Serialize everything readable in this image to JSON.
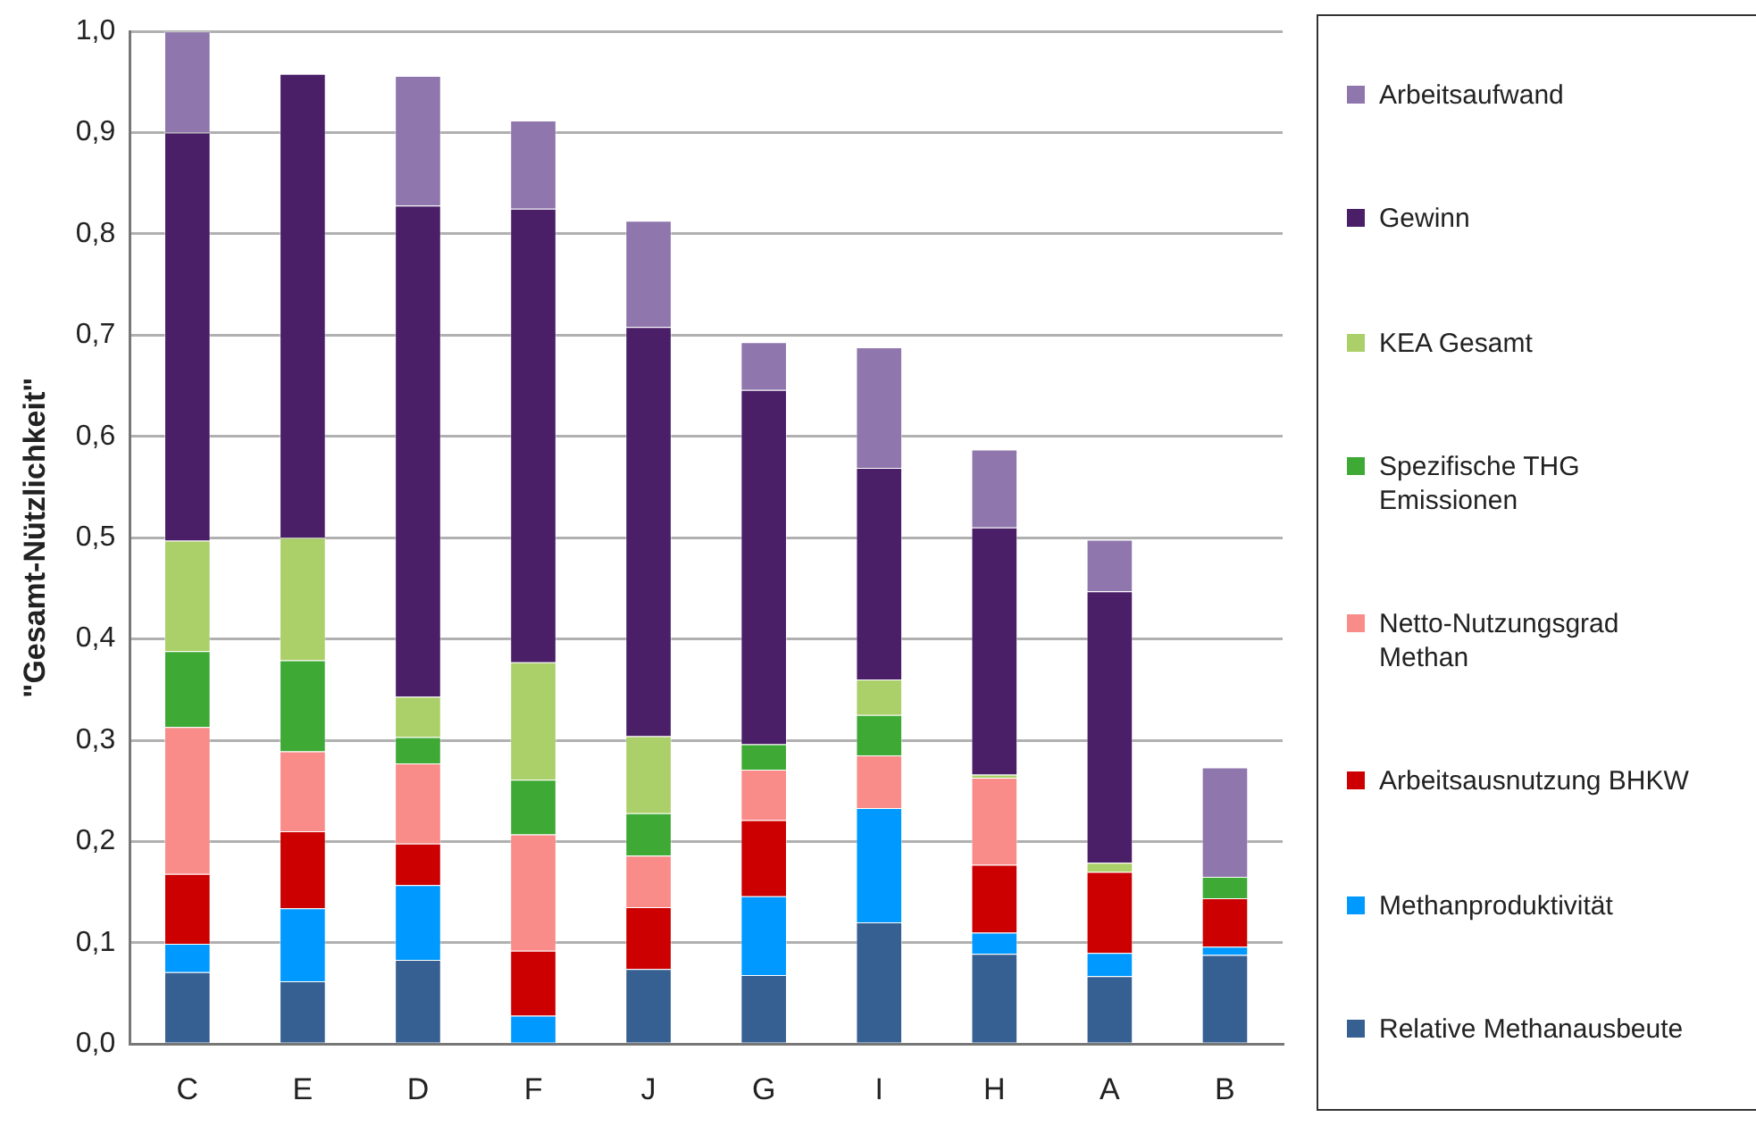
{
  "chart_data": {
    "type": "bar",
    "stacked": true,
    "ylabel": "\"Gesamt-Nützlichkeit\"",
    "categories": [
      "C",
      "E",
      "D",
      "F",
      "J",
      "G",
      "I",
      "H",
      "A",
      "B"
    ],
    "series": [
      {
        "name": "Relative Methanausbeute",
        "color": "#376092",
        "values": [
          0.071,
          0.062,
          0.083,
          0,
          0.074,
          0.068,
          0.12,
          0.089,
          0.067,
          0.088
        ]
      },
      {
        "name": "Methanproduktivität",
        "color": "#0099ff",
        "values": [
          0.028,
          0.072,
          0.074,
          0.028,
          0,
          0.078,
          0.113,
          0.021,
          0.023,
          0.008
        ]
      },
      {
        "name": "Arbeitsausnutzung BHKW",
        "color": "#cc0000",
        "values": [
          0.069,
          0.076,
          0.041,
          0.064,
          0.061,
          0.075,
          0,
          0.067,
          0.08,
          0.048
        ]
      },
      {
        "name": "Netto-Nutzungsgrad Methan",
        "color": "#f98b88",
        "values": [
          0.145,
          0.079,
          0.079,
          0.115,
          0.051,
          0.05,
          0.052,
          0.086,
          0,
          0
        ]
      },
      {
        "name": "Spezifische THG Emissionen",
        "color": "#3ea935",
        "values": [
          0.075,
          0.09,
          0.026,
          0.054,
          0.042,
          0.025,
          0.04,
          0,
          0,
          0.021
        ]
      },
      {
        "name": "KEA Gesamt",
        "color": "#abcf69",
        "values": [
          0.109,
          0.121,
          0.04,
          0.116,
          0.076,
          0,
          0.035,
          0.003,
          0.009,
          0
        ]
      },
      {
        "name": "Gewinn",
        "color": "#4a1f68",
        "values": [
          0.403,
          0.458,
          0.485,
          0.448,
          0.404,
          0.35,
          0.209,
          0.244,
          0.268,
          0
        ]
      },
      {
        "name": "Arbeitsaufwand",
        "color": "#8f76ad",
        "values": [
          0.1,
          0,
          0.128,
          0.087,
          0.105,
          0.047,
          0.119,
          0.077,
          0.051,
          0.108
        ]
      }
    ],
    "ylim": [
      0,
      1
    ],
    "yticks": [
      {
        "value": 0,
        "label": "0,0"
      },
      {
        "value": 0.1,
        "label": "0,1"
      },
      {
        "value": 0.2,
        "label": "0,2"
      },
      {
        "value": 0.3,
        "label": "0,3"
      },
      {
        "value": 0.4,
        "label": "0,4"
      },
      {
        "value": 0.5,
        "label": "0,5"
      },
      {
        "value": 0.6,
        "label": "0,6"
      },
      {
        "value": 0.7,
        "label": "0,7"
      },
      {
        "value": 0.8,
        "label": "0,8"
      },
      {
        "value": 0.9,
        "label": "0,9"
      },
      {
        "value": 1,
        "label": "1,0"
      }
    ],
    "grid": "y",
    "legend": "right"
  }
}
